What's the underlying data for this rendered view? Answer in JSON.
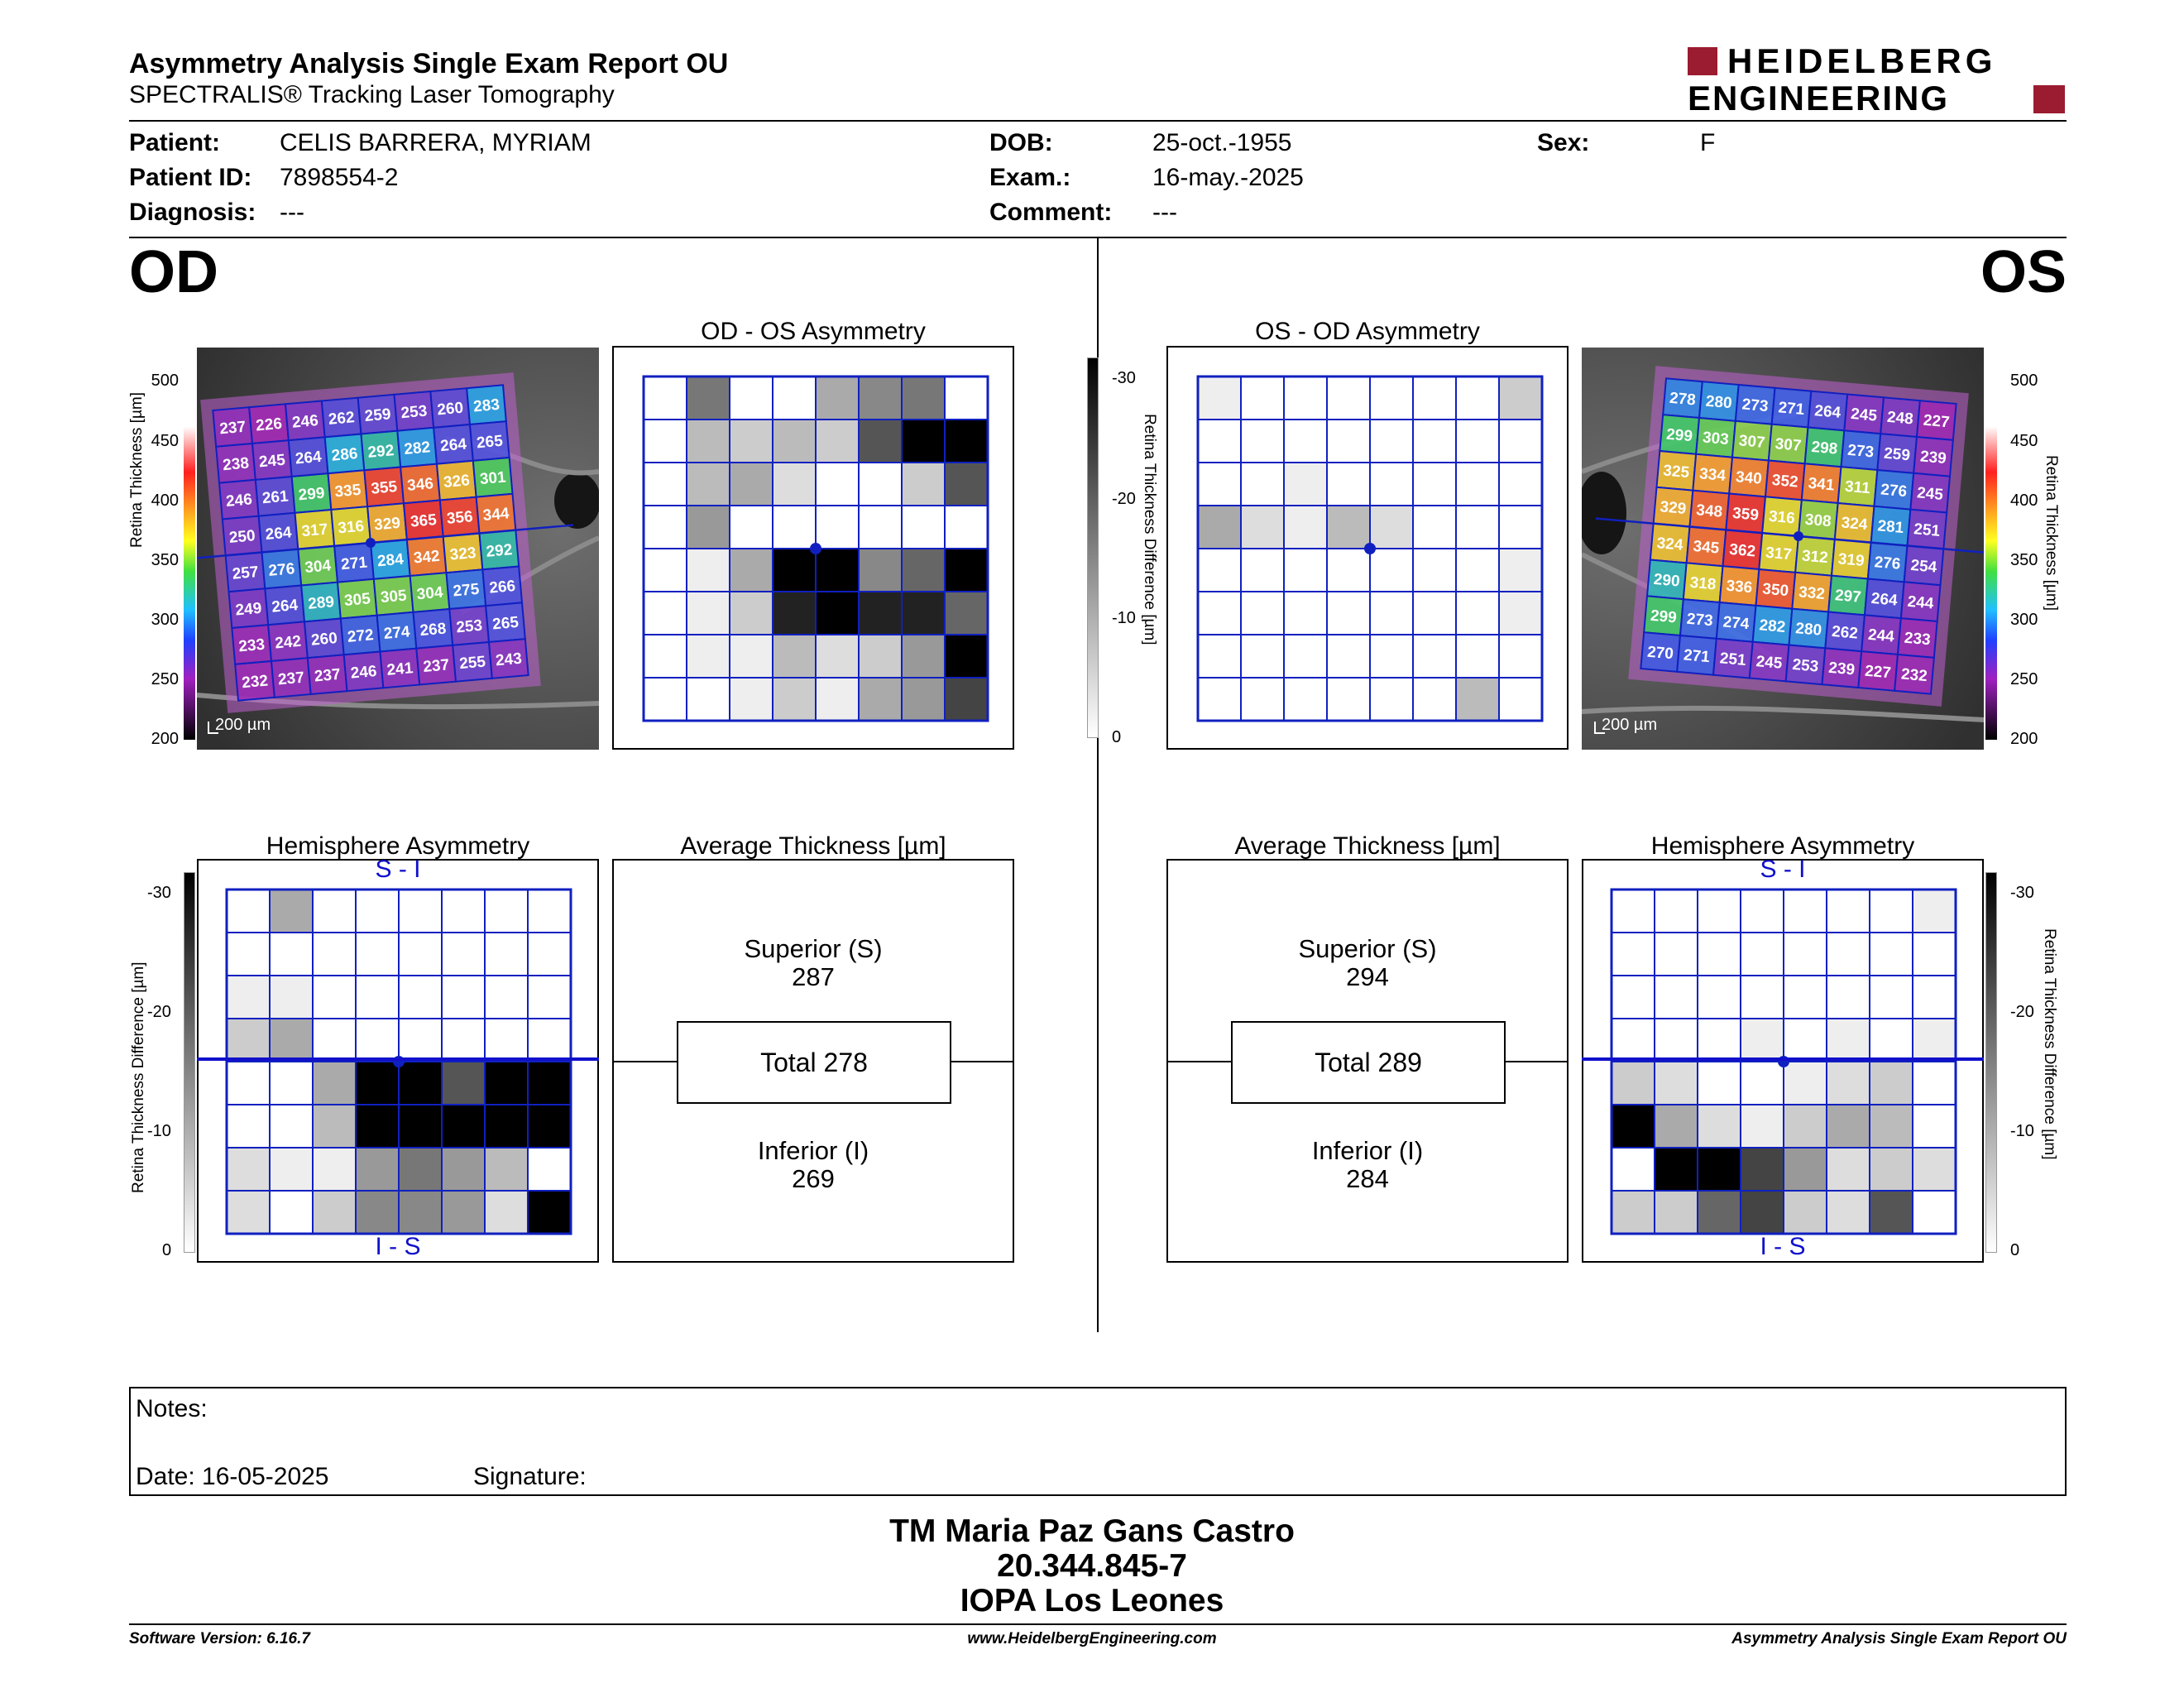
{
  "header": {
    "title": "Asymmetry Analysis Single Exam Report OU",
    "subtitle": "SPECTRALIS® Tracking Laser Tomography",
    "logo_line1": "HEIDELBERG",
    "logo_line2": "ENGINEERING",
    "brand_color": "#9b1b30"
  },
  "patient": {
    "patient_label": "Patient:",
    "patient_value": "CELIS BARRERA, MYRIAM",
    "id_label": "Patient ID:",
    "id_value": "7898554-2",
    "diag_label": "Diagnosis:",
    "diag_value": "---",
    "dob_label": "DOB:",
    "dob_value": "25-oct.-1955",
    "exam_label": "Exam.:",
    "exam_value": "16-may.-2025",
    "comment_label": "Comment:",
    "comment_value": "---",
    "sex_label": "Sex:",
    "sex_value": "F"
  },
  "eyes": {
    "od": "OD",
    "os": "OS"
  },
  "panels": {
    "od_os_title": "OD - OS Asymmetry",
    "os_od_title": "OS - OD Asymmetry",
    "hemi_title": "Hemisphere Asymmetry",
    "avg_title": "Average Thickness [µm]",
    "si_label": "S - I",
    "is_label": "I - S",
    "scale_bar": "200 µm",
    "thickness_axis": "Retina  Thickness [µm]",
    "diff_axis": "Retina Thickness Difference [µm]",
    "thickness_ticks": [
      "500",
      "450",
      "400",
      "350",
      "300",
      "250",
      "200"
    ],
    "diff_ticks": [
      "-30",
      "-20",
      "-10",
      "0"
    ]
  },
  "od": {
    "grid": [
      [
        237,
        226,
        246,
        262,
        259,
        253,
        260,
        283
      ],
      [
        238,
        245,
        264,
        286,
        292,
        282,
        264,
        265
      ],
      [
        246,
        261,
        299,
        335,
        355,
        346,
        326,
        301
      ],
      [
        250,
        264,
        317,
        316,
        329,
        365,
        356,
        344
      ],
      [
        257,
        276,
        304,
        271,
        284,
        342,
        323,
        292
      ],
      [
        249,
        264,
        289,
        305,
        305,
        304,
        275,
        266
      ],
      [
        233,
        242,
        260,
        272,
        274,
        268,
        253,
        265
      ],
      [
        232,
        237,
        237,
        246,
        241,
        237,
        255,
        243
      ]
    ],
    "asym": [
      [
        0,
        8,
        0,
        0,
        5,
        7,
        8,
        0
      ],
      [
        0,
        4,
        3,
        4,
        3,
        10,
        15,
        15
      ],
      [
        0,
        4,
        5,
        2,
        0,
        0,
        3,
        10
      ],
      [
        0,
        6,
        0,
        0,
        0,
        0,
        0,
        0
      ],
      [
        0,
        1,
        5,
        15,
        15,
        7,
        9,
        15
      ],
      [
        0,
        1,
        3,
        13,
        15,
        13,
        13,
        9
      ],
      [
        0,
        1,
        1,
        4,
        2,
        3,
        6,
        15
      ],
      [
        0,
        0,
        1,
        3,
        1,
        5,
        6,
        11
      ]
    ],
    "hemi": [
      [
        0,
        5,
        0,
        0,
        0,
        0,
        0,
        0
      ],
      [
        0,
        0,
        0,
        0,
        0,
        0,
        0,
        0
      ],
      [
        1,
        1,
        0,
        0,
        0,
        0,
        0,
        0
      ],
      [
        3,
        5,
        0,
        0,
        0,
        0,
        0,
        0
      ],
      [
        0,
        0,
        5,
        15,
        15,
        10,
        15,
        15
      ],
      [
        0,
        0,
        4,
        15,
        15,
        15,
        15,
        15
      ],
      [
        2,
        1,
        1,
        6,
        8,
        6,
        4,
        0
      ],
      [
        2,
        0,
        3,
        7,
        7,
        6,
        2,
        15
      ]
    ],
    "avg": {
      "superior_label": "Superior (S)",
      "superior": "287",
      "total": "Total 278",
      "inferior_label": "Inferior (I)",
      "inferior": "269"
    }
  },
  "os": {
    "grid": [
      [
        278,
        280,
        273,
        271,
        264,
        245,
        248,
        227
      ],
      [
        299,
        303,
        307,
        307,
        298,
        273,
        259,
        239
      ],
      [
        325,
        334,
        340,
        352,
        341,
        311,
        276,
        245
      ],
      [
        329,
        348,
        359,
        316,
        308,
        324,
        281,
        251
      ],
      [
        324,
        345,
        362,
        317,
        312,
        319,
        276,
        254
      ],
      [
        290,
        318,
        336,
        350,
        332,
        297,
        264,
        244
      ],
      [
        299,
        273,
        274,
        282,
        280,
        262,
        244,
        233
      ],
      [
        270,
        271,
        251,
        245,
        253,
        239,
        227,
        232
      ]
    ],
    "asym": [
      [
        1,
        0,
        0,
        0,
        0,
        0,
        0,
        3
      ],
      [
        0,
        0,
        0,
        0,
        0,
        0,
        0,
        0
      ],
      [
        0,
        0,
        1,
        0,
        0,
        0,
        0,
        0
      ],
      [
        5,
        2,
        1,
        4,
        2,
        0,
        0,
        0
      ],
      [
        0,
        0,
        0,
        0,
        0,
        0,
        0,
        1
      ],
      [
        0,
        0,
        0,
        0,
        0,
        0,
        0,
        1
      ],
      [
        0,
        0,
        0,
        0,
        0,
        0,
        0,
        0
      ],
      [
        0,
        0,
        0,
        0,
        0,
        0,
        4,
        0
      ]
    ],
    "hemi": [
      [
        0,
        0,
        0,
        0,
        0,
        0,
        0,
        1
      ],
      [
        0,
        0,
        0,
        0,
        0,
        0,
        0,
        0
      ],
      [
        0,
        0,
        0,
        0,
        0,
        0,
        0,
        0
      ],
      [
        0,
        0,
        0,
        1,
        0,
        1,
        0,
        1
      ],
      [
        3,
        2,
        0,
        0,
        1,
        2,
        3,
        0
      ],
      [
        15,
        5,
        2,
        1,
        3,
        5,
        4,
        0
      ],
      [
        0,
        15,
        15,
        11,
        6,
        2,
        3,
        2
      ],
      [
        3,
        3,
        9,
        11,
        3,
        2,
        10,
        0
      ]
    ],
    "avg": {
      "superior_label": "Superior (S)",
      "superior": "294",
      "total": "Total 289",
      "inferior_label": "Inferior (I)",
      "inferior": "284"
    }
  },
  "notes": {
    "notes_label": "Notes:",
    "date_label": "Date: 16-05-2025",
    "signature_label": "Signature:"
  },
  "signatory": {
    "name": "TM Maria Paz Gans Castro",
    "id": "20.344.845-7",
    "institution": "IOPA Los Leones"
  },
  "footer": {
    "software": "Software Version: 6.16.7",
    "website": "www.HeidelbergEngineering.com",
    "report": "Asymmetry Analysis Single Exam Report OU"
  }
}
